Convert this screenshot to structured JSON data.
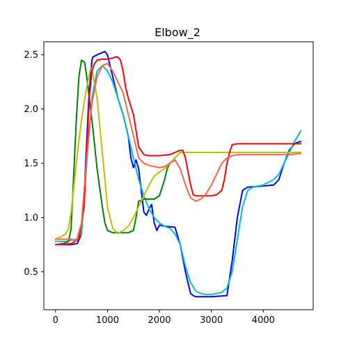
{
  "chart_data": {
    "type": "line",
    "title": "Elbow_2",
    "xlabel": "",
    "ylabel": "",
    "xlim": [
      -225,
      4960
    ],
    "ylim": [
      0.15,
      2.62
    ],
    "xticks": [
      0,
      1000,
      2000,
      3000,
      4000
    ],
    "xtick_labels": [
      "0",
      "1000",
      "2000",
      "3000",
      "4000"
    ],
    "yticks": [
      0.5,
      1.0,
      1.5,
      2.0,
      2.5
    ],
    "ytick_labels": [
      "0.5",
      "1.0",
      "1.5",
      "2.0",
      "2.5"
    ],
    "grid": false,
    "series": [
      {
        "color": "#0000ff",
        "x": [
          0,
          200,
          300,
          420,
          500,
          560,
          640,
          700,
          720,
          800,
          900,
          950,
          1000,
          1100,
          1200,
          1300,
          1400,
          1450,
          1500,
          1550,
          1600,
          1700,
          1750,
          1800,
          1850,
          1900,
          1950,
          2000,
          2100,
          2300,
          2400,
          2500,
          2600,
          2650,
          2700,
          3000,
          3300,
          3400,
          3500,
          3600,
          3700,
          4000,
          4200,
          4300,
          4400,
          4500,
          4600,
          4700,
          4720
        ],
        "y": [
          0.75,
          0.75,
          0.75,
          0.76,
          0.85,
          1.3,
          2.1,
          2.45,
          2.48,
          2.5,
          2.52,
          2.53,
          2.5,
          2.3,
          2.1,
          1.95,
          1.75,
          1.55,
          1.46,
          1.53,
          1.45,
          1.05,
          1.02,
          1.08,
          1.12,
          0.95,
          0.88,
          0.93,
          0.92,
          0.91,
          0.75,
          0.5,
          0.3,
          0.28,
          0.27,
          0.27,
          0.28,
          0.6,
          1.0,
          1.25,
          1.28,
          1.29,
          1.3,
          1.35,
          1.5,
          1.62,
          1.68,
          1.7,
          1.7
        ]
      },
      {
        "color": "#00bfbf",
        "x": [
          0,
          200,
          400,
          500,
          600,
          700,
          800,
          900,
          1000,
          1100,
          1200,
          1300,
          1400,
          1500,
          1600,
          1700,
          1800,
          1900,
          2000,
          2100,
          2200,
          2300,
          2400,
          2500,
          2600,
          2700,
          2800,
          2900,
          3000,
          3100,
          3200,
          3300,
          3400,
          3500,
          3600,
          3700,
          3800,
          4000,
          4200,
          4300,
          4400,
          4500,
          4600,
          4700,
          4720
        ],
        "y": [
          0.78,
          0.78,
          0.8,
          0.85,
          1.5,
          2.1,
          2.35,
          2.4,
          2.35,
          2.25,
          2.1,
          1.95,
          1.75,
          1.55,
          1.35,
          1.2,
          1.08,
          1.0,
          0.95,
          0.92,
          0.9,
          0.85,
          0.75,
          0.55,
          0.4,
          0.32,
          0.3,
          0.29,
          0.29,
          0.3,
          0.31,
          0.35,
          0.5,
          0.8,
          1.1,
          1.25,
          1.28,
          1.3,
          1.35,
          1.4,
          1.5,
          1.6,
          1.7,
          1.78,
          1.8
        ]
      },
      {
        "color": "#008000",
        "x": [
          0,
          150,
          250,
          300,
          350,
          400,
          450,
          500,
          560,
          600,
          700,
          800,
          900,
          950,
          1000,
          1100,
          1200,
          1300,
          1400,
          1500,
          1550,
          1600,
          1700,
          1800,
          1900,
          2000,
          2100,
          2150,
          2200,
          2300,
          2400,
          2500,
          3000,
          3500,
          4000,
          4500,
          4720
        ],
        "y": [
          0.75,
          0.76,
          0.78,
          0.9,
          1.4,
          1.9,
          2.3,
          2.45,
          2.43,
          2.3,
          1.9,
          1.45,
          1.1,
          0.95,
          0.88,
          0.86,
          0.86,
          0.86,
          0.86,
          0.88,
          1.0,
          1.15,
          1.17,
          1.17,
          1.17,
          1.2,
          1.35,
          1.45,
          1.5,
          1.55,
          1.6,
          1.6,
          1.6,
          1.6,
          1.6,
          1.6,
          1.6
        ]
      },
      {
        "color": "#bfbf00",
        "x": [
          0,
          100,
          200,
          250,
          300,
          400,
          500,
          600,
          680,
          700,
          800,
          900,
          1000,
          1100,
          1200,
          1300,
          1400,
          1500,
          1600,
          1700,
          1800,
          1900,
          2000,
          2100,
          2200,
          2300,
          2400,
          2500,
          2600,
          3000,
          3500,
          4000,
          4500,
          4720
        ],
        "y": [
          0.8,
          0.82,
          0.85,
          0.9,
          1.05,
          1.5,
          1.9,
          2.2,
          2.38,
          2.37,
          2.1,
          1.6,
          1.1,
          0.9,
          0.85,
          0.88,
          0.92,
          1.0,
          1.1,
          1.2,
          1.3,
          1.38,
          1.42,
          1.45,
          1.5,
          1.55,
          1.6,
          1.6,
          1.6,
          1.6,
          1.6,
          1.6,
          1.6,
          1.6
        ]
      },
      {
        "color": "#ff0000",
        "x": [
          0,
          100,
          300,
          450,
          550,
          600,
          650,
          700,
          750,
          800,
          900,
          1000,
          1100,
          1150,
          1200,
          1250,
          1300,
          1350,
          1400,
          1500,
          1550,
          1600,
          1700,
          1800,
          2000,
          2200,
          2300,
          2400,
          2450,
          2500,
          2600,
          2650,
          2700,
          2800,
          3000,
          3100,
          3200,
          3250,
          3300,
          3350,
          3400,
          3500,
          3600,
          3800,
          4000,
          4200,
          4500,
          4720
        ],
        "y": [
          0.75,
          0.75,
          0.76,
          0.8,
          1.1,
          1.6,
          2.1,
          2.35,
          2.42,
          2.45,
          2.46,
          2.46,
          2.47,
          2.48,
          2.48,
          2.45,
          2.35,
          2.2,
          2.1,
          1.95,
          1.8,
          1.65,
          1.58,
          1.57,
          1.57,
          1.58,
          1.6,
          1.62,
          1.62,
          1.55,
          1.3,
          1.21,
          1.2,
          1.2,
          1.2,
          1.21,
          1.25,
          1.35,
          1.5,
          1.6,
          1.67,
          1.68,
          1.68,
          1.68,
          1.68,
          1.68,
          1.68,
          1.68
        ]
      },
      {
        "color": "#ff6347",
        "x": [
          0,
          100,
          200,
          300,
          400,
          500,
          600,
          700,
          800,
          900,
          1000,
          1100,
          1200,
          1300,
          1400,
          1500,
          1600,
          1700,
          1800,
          1900,
          2000,
          2100,
          2200,
          2300,
          2400,
          2500,
          2600,
          2700,
          2800,
          2900,
          3000,
          3100,
          3200,
          3300,
          3400,
          3500,
          4000,
          4500,
          4720
        ],
        "y": [
          0.8,
          0.8,
          0.8,
          0.8,
          0.78,
          0.95,
          1.55,
          2.05,
          2.3,
          2.4,
          2.42,
          2.35,
          2.25,
          2.15,
          1.95,
          1.75,
          1.55,
          1.5,
          1.48,
          1.47,
          1.46,
          1.47,
          1.5,
          1.53,
          1.45,
          1.3,
          1.18,
          1.15,
          1.17,
          1.22,
          1.3,
          1.4,
          1.5,
          1.55,
          1.57,
          1.58,
          1.58,
          1.58,
          1.59
        ]
      }
    ]
  }
}
